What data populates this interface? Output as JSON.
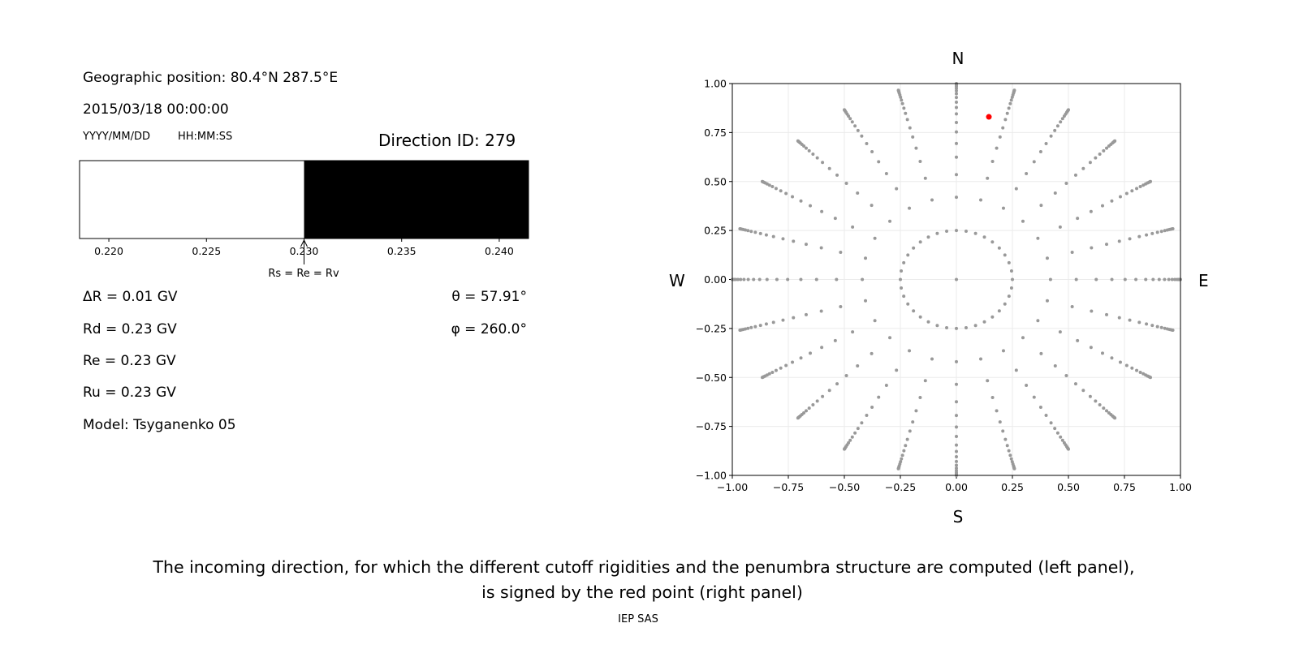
{
  "left_panel": {
    "geo_position": "Geographic position: 80.4°N 287.5°E",
    "datetime": "2015/03/18 00:00:00",
    "date_format": "YYYY/MM/DD",
    "time_format": "HH:MM:SS",
    "direction_id": "Direction ID: 279",
    "delta_r": "ΔR = 0.01 GV",
    "rd": "Rd = 0.23 GV",
    "re": "Re = 0.23 GV",
    "ru": "Ru = 0.23 GV",
    "model": "Model: Tsyganenko 05",
    "theta": "θ = 57.91°",
    "phi": "φ = 260.0°",
    "arrow_label": "Rs = Re = Rv"
  },
  "chart_data": [
    {
      "type": "bar",
      "description_role": "penumbra",
      "xlim": [
        0.2185,
        0.2415
      ],
      "x_ticks": [
        "0.220",
        "0.225",
        "0.230",
        "0.235",
        "0.240"
      ],
      "x_tick_values": [
        0.22,
        0.225,
        0.23,
        0.235,
        0.24
      ],
      "segments": [
        {
          "from": 0.2185,
          "to": 0.23,
          "color": "#ffffff"
        },
        {
          "from": 0.23,
          "to": 0.2415,
          "color": "#000000"
        }
      ],
      "marker_value": 0.23
    },
    {
      "type": "scatter",
      "xlim": [
        -1.0,
        1.0
      ],
      "ylim": [
        -1.0,
        1.0
      ],
      "grid": true,
      "x_ticks": [
        "−1.00",
        "−0.75",
        "−0.50",
        "−0.25",
        "0.00",
        "0.25",
        "0.50",
        "0.75",
        "1.00"
      ],
      "y_ticks": [
        "1.00",
        "0.75",
        "0.50",
        "0.25",
        "0.00",
        "−0.25",
        "−0.50",
        "−0.75",
        "−1.00"
      ],
      "tick_values": [
        -1,
        -0.75,
        -0.5,
        -0.25,
        0,
        0.25,
        0.5,
        0.75,
        1
      ],
      "compass": {
        "north": "N",
        "south": "S",
        "west": "W",
        "east": "E"
      },
      "point_color": "#999999",
      "center_point": [
        0,
        0
      ],
      "ring_radius": 0.25,
      "ring_azimuth_step_deg": 10,
      "ray_azimuth_step_deg": 15,
      "ray_radii": [
        0.42,
        0.535,
        0.624,
        0.694,
        0.753,
        0.801,
        0.845,
        0.878,
        0.905,
        0.929,
        0.948,
        0.963,
        0.975,
        0.985,
        0.992,
        0.997,
        1.0
      ],
      "highlight": {
        "x": 0.145,
        "y": 0.83,
        "color": "#ff0000"
      }
    }
  ],
  "caption": {
    "line1": "The incoming direction, for which the different cutoff rigidities and the penumbra structure are computed (left panel),",
    "line2": "is signed by the red point (right panel)"
  },
  "footer": "IEP SAS"
}
